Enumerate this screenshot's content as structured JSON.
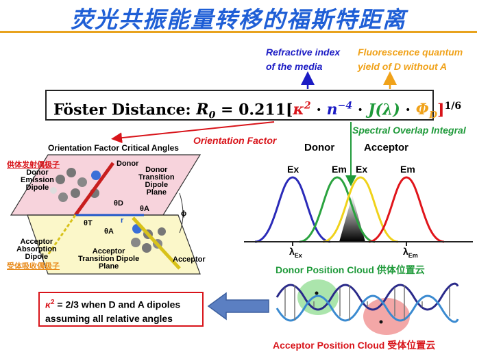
{
  "title": "荧光共振能量转移的福斯特距离",
  "notes": {
    "refractive": [
      "Refractive index",
      "of the media"
    ],
    "quantum_yield": [
      "Fluorescence quantum",
      "yield of D without A"
    ],
    "orientation_factor": "Orientation Factor",
    "spectral_overlap": "Spectral Overlap Integral"
  },
  "formula": {
    "label": "Föster Distance: ",
    "r0": "R",
    "r0_sub": "0",
    "equals": " = 0.211[",
    "kappa": "κ",
    "kappa_exp": "2",
    "dot1": " · ",
    "n": "n",
    "n_exp": "−4",
    "dot2": " · ",
    "j": "J(λ)",
    "dot3": " · ",
    "phi": "Φ",
    "phi_sub": "D",
    "close": "]",
    "exp": "1/6"
  },
  "orientation_panel": {
    "title": "Orientation Factor Critical Angles",
    "donor_cn": "供体发射偶极子",
    "donor_emission": [
      "Donor",
      "Emission",
      "Dipole"
    ],
    "acceptor_absorption": [
      "Acceptor",
      "Absorption",
      "Dipole"
    ],
    "acceptor_cn": "受体吸收偶极子",
    "donor": "Donor",
    "donor_plane": [
      "Donor",
      "Transition",
      "Dipole",
      "Plane"
    ],
    "acceptor_plane": [
      "Acceptor",
      "Transition Dipole",
      "Plane"
    ],
    "acceptor": "Acceptor",
    "theta_d": "θD",
    "theta_a": "θA",
    "theta_t": "θT",
    "theta_a2": "θA",
    "r": "r",
    "phi": "ϕ"
  },
  "spectra": {
    "donor": "Donor",
    "acceptor": "Acceptor",
    "ex1": "Ex",
    "em1": "Em",
    "ex2": "Ex",
    "em2": "Em",
    "lambda_ex": "λ",
    "lambda_ex_sub": "Ex",
    "lambda_em": "λ",
    "lambda_em_sub": "Em"
  },
  "clouds": {
    "donor": "Donor Position Cloud 供体位置云",
    "acceptor": "Acceptor Position Cloud 受体位置云"
  },
  "kappa_note": {
    "k": "κ",
    "k_exp": "2",
    "line1": " = 2/3 when D and A dipoles",
    "line2": "assuming all relative angles"
  },
  "colors": {
    "title": "#1f5fd6",
    "rule": "#e8a31e",
    "red": "#d8141a",
    "blue": "#1c1cc4",
    "green": "#1f9a3a",
    "orange": "#f0a21a"
  }
}
